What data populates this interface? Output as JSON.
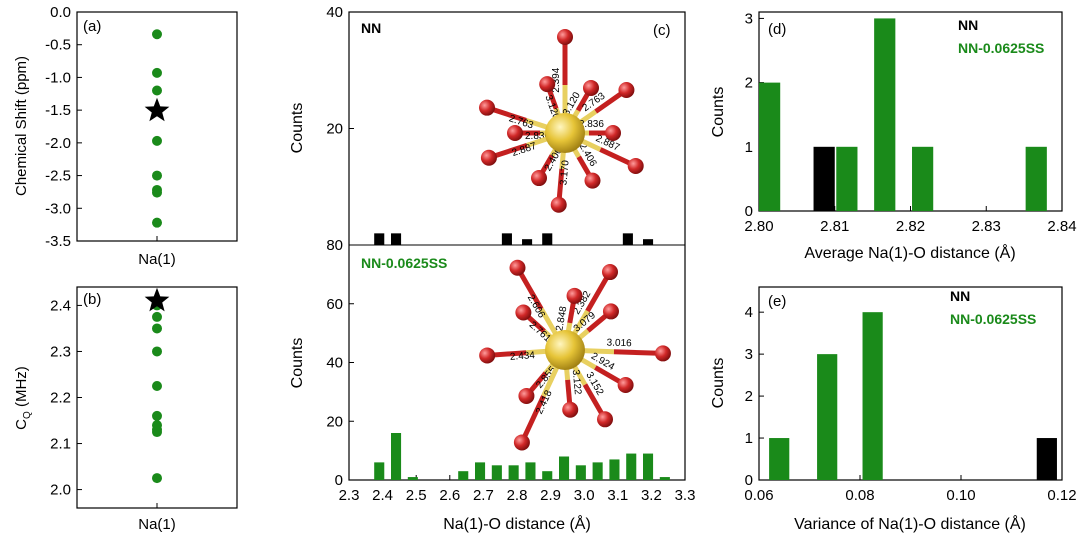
{
  "colors": {
    "green": "#1a8a1a",
    "black": "#000000",
    "gold": "#e6c437",
    "red": "#d12828"
  },
  "panels": {
    "a": {
      "label": "(a)",
      "ylabel": "Chemical Shift (ppm)",
      "xlabel": "Na(1)"
    },
    "b": {
      "label": "(b)",
      "ylabel": "C",
      "ylabel_sub": "Q",
      "ylabel_unit": " (MHz)",
      "xlabel": "Na(1)"
    },
    "c": {
      "label": "(c)",
      "ylabel_top": "Counts",
      "ylabel_bottom": "Counts",
      "xlabel": "Na(1)-O distance (Å)",
      "legend_top": "NN",
      "legend_bottom": "NN-0.0625SS"
    },
    "d": {
      "label": "(d)",
      "ylabel": "Counts",
      "xlabel": "Average Na(1)-O distance (Å)",
      "legend": [
        "NN",
        "NN-0.0625SS"
      ]
    },
    "e": {
      "label": "(e)",
      "ylabel": "Counts",
      "xlabel": "Variance of Na(1)-O distance (Å)",
      "legend": [
        "NN",
        "NN-0.0625SS"
      ]
    }
  },
  "structure_labels": {
    "top": [
      "2.763",
      "2.394",
      "3.120",
      "3.120",
      "2.763",
      "2.836",
      "2.836",
      "2.887",
      "2.406",
      "3.170",
      "2.406",
      "2.887"
    ],
    "bottom": [
      "2.606",
      "2.382",
      "2.761",
      "2.848",
      "3.079",
      "3.016",
      "2.434",
      "2.855",
      "2.924",
      "3.152",
      "2.418",
      "3.122"
    ]
  },
  "chart_data": [
    {
      "panel": "a",
      "type": "scatter",
      "title": "",
      "xlabel": "Na(1)",
      "ylabel": "Chemical Shift (ppm)",
      "ylim": [
        -3.5,
        0.0
      ],
      "yticks": [
        "0.0",
        "-0.5",
        "-1.0",
        "-1.5",
        "-2.0",
        "-2.5",
        "-3.0",
        "-3.5"
      ],
      "series": [
        {
          "marker": "circle",
          "color": "green",
          "values": [
            -0.34,
            -0.93,
            -1.2,
            -1.5,
            -1.97,
            -2.5,
            -2.72,
            -2.76,
            -3.22
          ]
        },
        {
          "marker": "star",
          "color": "black",
          "values": [
            -1.51
          ]
        }
      ]
    },
    {
      "panel": "b",
      "type": "scatter",
      "title": "",
      "xlabel": "Na(1)",
      "ylabel": "CQ (MHz)",
      "ylim": [
        1.96,
        2.44
      ],
      "yticks": [
        "2.0",
        "2.1",
        "2.2",
        "2.3",
        "2.4"
      ],
      "series": [
        {
          "marker": "circle",
          "color": "green",
          "values": [
            2.4,
            2.375,
            2.35,
            2.3,
            2.225,
            2.16,
            2.14,
            2.13,
            2.125,
            2.025
          ]
        },
        {
          "marker": "star",
          "color": "black",
          "values": [
            2.41
          ]
        }
      ]
    },
    {
      "panel": "c-top",
      "type": "bar",
      "xlabel": "",
      "ylabel": "Counts",
      "xlim": [
        2.3,
        3.3
      ],
      "ylim": [
        0,
        40
      ],
      "bar_width": 0.03,
      "yticks": [
        "20",
        "40"
      ],
      "series": [
        {
          "name": "NN",
          "color": "black",
          "x": [
            2.39,
            2.44,
            2.77,
            2.83,
            2.89,
            3.13,
            3.19
          ],
          "values": [
            2,
            2,
            2,
            1,
            2,
            2,
            1
          ]
        }
      ]
    },
    {
      "panel": "c-bottom",
      "type": "bar",
      "xlabel": "Na(1)-O distance (Å)",
      "ylabel": "Counts",
      "xlim": [
        2.3,
        3.3
      ],
      "ylim": [
        0,
        80
      ],
      "bar_width": 0.03,
      "xticks": [
        "2.3",
        "2.4",
        "2.5",
        "2.6",
        "2.7",
        "2.8",
        "2.9",
        "3.0",
        "3.1",
        "3.2",
        "3.3"
      ],
      "yticks": [
        "0",
        "20",
        "40",
        "60",
        "80"
      ],
      "series": [
        {
          "name": "NN-0.0625SS",
          "color": "green",
          "x": [
            2.39,
            2.44,
            2.49,
            2.64,
            2.69,
            2.74,
            2.79,
            2.84,
            2.89,
            2.94,
            2.99,
            3.04,
            3.09,
            3.14,
            3.19,
            3.24
          ],
          "values": [
            6,
            16,
            1,
            3,
            6,
            5,
            5,
            6,
            3,
            8,
            5,
            6,
            7,
            9,
            9,
            1
          ]
        }
      ]
    },
    {
      "panel": "d",
      "type": "bar",
      "xlabel": "Average Na(1)-O distance (Å)",
      "ylabel": "Counts",
      "xlim": [
        2.8,
        2.84
      ],
      "ylim": [
        0,
        3.1
      ],
      "bar_width": 0.0028,
      "xticks": [
        "2.80",
        "2.81",
        "2.82",
        "2.83",
        "2.84"
      ],
      "yticks": [
        "0",
        "1",
        "2",
        "3"
      ],
      "series": [
        {
          "name": "NN",
          "color": "black",
          "x": [
            2.8086
          ],
          "values": [
            1
          ]
        },
        {
          "name": "NN-0.0625SS",
          "color": "green",
          "x": [
            2.8014,
            2.8116,
            2.8166,
            2.8216,
            2.8366
          ],
          "values": [
            2,
            1,
            3,
            1,
            1
          ]
        }
      ]
    },
    {
      "panel": "e",
      "type": "bar",
      "xlabel": "Variance of Na(1)-O distance (Å)",
      "ylabel": "Counts",
      "xlim": [
        0.06,
        0.12
      ],
      "ylim": [
        0,
        4.6
      ],
      "bar_width": 0.004,
      "xticks": [
        "0.06",
        "0.08",
        "0.10",
        "0.12"
      ],
      "yticks": [
        "0",
        "1",
        "2",
        "3",
        "4"
      ],
      "series": [
        {
          "name": "NN",
          "color": "black",
          "x": [
            0.117
          ],
          "values": [
            1
          ]
        },
        {
          "name": "NN-0.0625SS",
          "color": "green",
          "x": [
            0.064,
            0.0735,
            0.0825
          ],
          "values": [
            1,
            3,
            4
          ]
        }
      ]
    }
  ]
}
